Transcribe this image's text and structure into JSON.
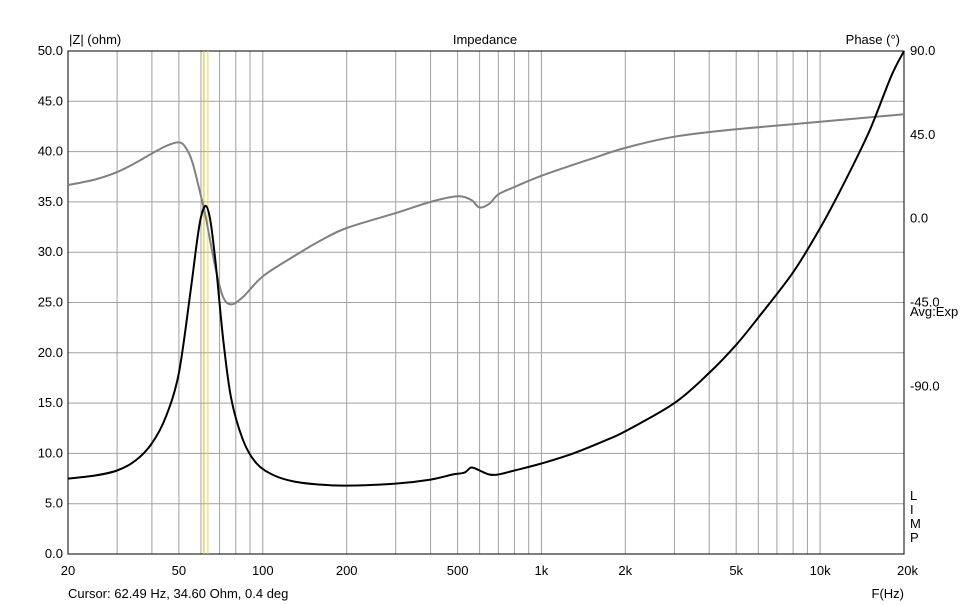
{
  "chart_data": {
    "type": "line",
    "title": "Impedance",
    "left_axis_label": "|Z| (ohm)",
    "right_axis_label": "Phase (°)",
    "xlabel": "F(Hz)",
    "x_scale": "log",
    "xlim": [
      20,
      20000
    ],
    "ylim": [
      0,
      50
    ],
    "phase_lim": [
      -180,
      90
    ],
    "x_ticks": [
      {
        "value": 20,
        "label": "20"
      },
      {
        "value": 50,
        "label": "50"
      },
      {
        "value": 100,
        "label": "100"
      },
      {
        "value": 200,
        "label": "200"
      },
      {
        "value": 500,
        "label": "500"
      },
      {
        "value": 1000,
        "label": "1k"
      },
      {
        "value": 2000,
        "label": "2k"
      },
      {
        "value": 5000,
        "label": "5k"
      },
      {
        "value": 10000,
        "label": "10k"
      },
      {
        "value": 20000,
        "label": "20k"
      }
    ],
    "y_ticks": [
      {
        "value": 0,
        "label": "0.0"
      },
      {
        "value": 5,
        "label": "5.0"
      },
      {
        "value": 10,
        "label": "10.0"
      },
      {
        "value": 15,
        "label": "15.0"
      },
      {
        "value": 20,
        "label": "20.0"
      },
      {
        "value": 25,
        "label": "25.0"
      },
      {
        "value": 30,
        "label": "30.0"
      },
      {
        "value": 35,
        "label": "35.0"
      },
      {
        "value": 40,
        "label": "40.0"
      },
      {
        "value": 45,
        "label": "45.0"
      },
      {
        "value": 50,
        "label": "50.0"
      }
    ],
    "phase_ticks": [
      {
        "value": 90,
        "label": "90.0"
      },
      {
        "value": 45,
        "label": "45.0"
      },
      {
        "value": 0,
        "label": "0.0"
      },
      {
        "value": -45,
        "label": "-45.0"
      },
      {
        "value": -90,
        "label": "-90.0"
      }
    ],
    "side_note": "Avg:Exp",
    "side_letters": [
      "L",
      "I",
      "M",
      "P"
    ],
    "cursor": {
      "frequency_hz": 62.49,
      "text": "Cursor: 62.49 Hz, 34.60 Ohm, 0.4 deg"
    },
    "grid": true,
    "colors": {
      "impedance": "#000000",
      "phase": "#808080",
      "grid": "#a0a0a0",
      "cursor": "#e0c000"
    },
    "series": [
      {
        "axis": "left",
        "x": [
          20,
          25,
          30,
          35,
          40,
          45,
          50,
          55,
          58,
          60,
          62.5,
          65,
          68,
          72,
          77,
          85,
          95,
          110,
          130,
          160,
          200,
          300,
          400,
          480,
          530,
          560,
          600,
          650,
          700,
          800,
          1000,
          1300,
          1700,
          2000,
          3000,
          4000,
          5000,
          6000,
          8000,
          10000,
          12000,
          15000,
          18000,
          20000
        ],
        "values": [
          7.5,
          7.8,
          8.3,
          9.3,
          11.0,
          13.7,
          18.0,
          26.0,
          31.0,
          33.5,
          34.6,
          33.0,
          28.5,
          21.5,
          15.5,
          11.3,
          9.0,
          7.8,
          7.2,
          6.9,
          6.8,
          7.0,
          7.4,
          7.9,
          8.1,
          8.6,
          8.3,
          7.9,
          7.9,
          8.3,
          9.0,
          10.0,
          11.3,
          12.2,
          15.0,
          18.0,
          20.8,
          23.5,
          28.0,
          32.4,
          36.5,
          42.0,
          47.5,
          50.0
        ]
      },
      {
        "axis": "right",
        "x": [
          20,
          25,
          30,
          35,
          40,
          45,
          50,
          53,
          56,
          60,
          62.5,
          65,
          68,
          72,
          77,
          85,
          100,
          130,
          160,
          200,
          300,
          400,
          500,
          560,
          600,
          650,
          700,
          800,
          1000,
          1500,
          2000,
          3000,
          5000,
          10000,
          20000
        ],
        "values": [
          18,
          21,
          25,
          30,
          35,
          39,
          41,
          38,
          30,
          12,
          0.4,
          -13,
          -28,
          -42,
          -46,
          -42,
          -31,
          -20,
          -12,
          -5,
          3,
          9,
          12,
          10,
          6,
          8,
          13,
          17,
          23,
          32,
          38,
          44,
          48,
          52,
          56
        ]
      }
    ]
  }
}
